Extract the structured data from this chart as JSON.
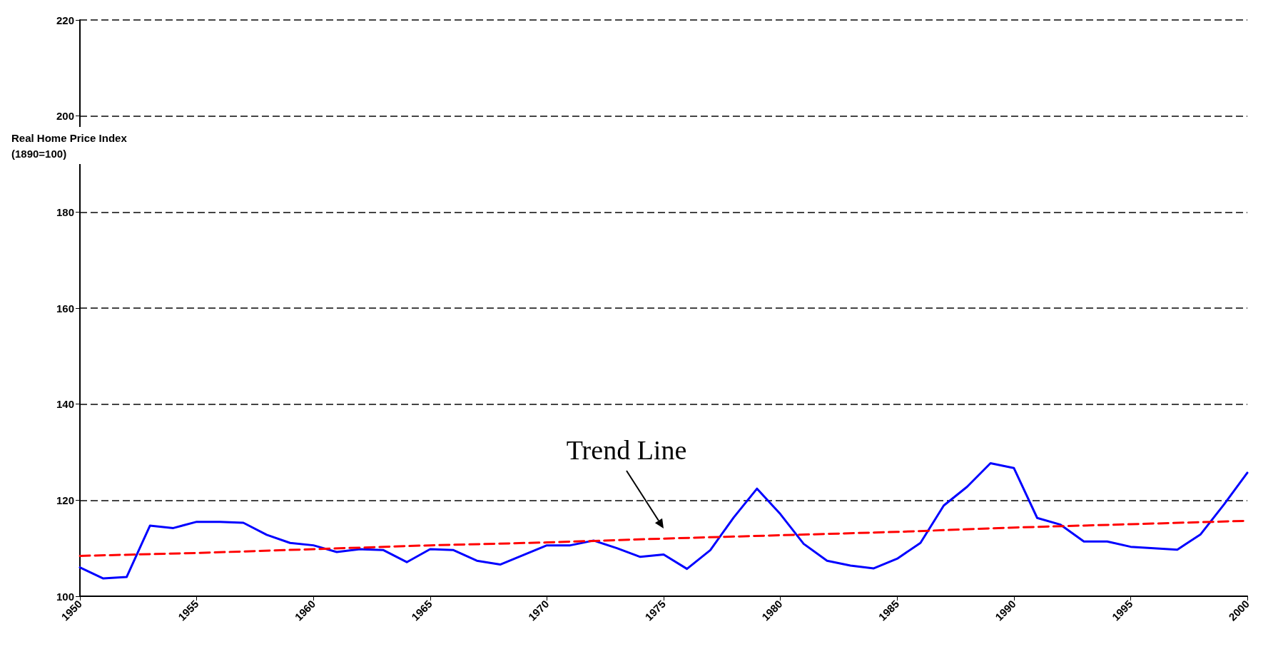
{
  "chart_data": {
    "type": "line",
    "ylabel": "Real Home Price Index\n(1890=100)",
    "x": [
      1950,
      1951,
      1952,
      1953,
      1954,
      1955,
      1956,
      1957,
      1958,
      1959,
      1960,
      1961,
      1962,
      1963,
      1964,
      1965,
      1966,
      1967,
      1968,
      1969,
      1970,
      1971,
      1972,
      1973,
      1974,
      1975,
      1976,
      1977,
      1978,
      1979,
      1980,
      1981,
      1982,
      1983,
      1984,
      1985,
      1986,
      1987,
      1988,
      1989,
      1990,
      1991,
      1992,
      1993,
      1994,
      1995,
      1996,
      1997,
      1998,
      1999,
      2000
    ],
    "series": [
      {
        "color": "#0000ff",
        "line_style": "solid",
        "values": [
          106.0,
          103.7,
          104.0,
          114.7,
          114.2,
          115.5,
          115.5,
          115.3,
          112.8,
          111.1,
          110.6,
          109.2,
          109.8,
          109.6,
          107.1,
          109.8,
          109.6,
          107.4,
          106.6,
          108.6,
          110.6,
          110.6,
          111.6,
          110.0,
          108.2,
          108.7,
          105.7,
          109.6,
          116.4,
          122.4,
          117.1,
          110.9,
          107.4,
          106.4,
          105.8,
          107.8,
          111.1,
          118.9,
          122.8,
          127.7,
          126.7,
          116.3,
          114.9,
          111.4,
          111.4,
          110.3,
          110.0,
          109.7,
          112.9,
          119.1,
          125.7
        ]
      },
      {
        "color": "#ff0000",
        "line_style": "dashed",
        "x": [
          1950,
          1955,
          1960,
          1965,
          1970,
          1975,
          1980,
          1985,
          1990,
          1995,
          2000
        ],
        "values": [
          108.4,
          109.0,
          109.8,
          110.6,
          111.2,
          112.0,
          112.7,
          113.4,
          114.3,
          115.0,
          115.7
        ]
      }
    ],
    "annotations": [
      {
        "text": "Trend Line",
        "x": 1975,
        "y": 112
      }
    ],
    "xlim": [
      1950,
      2000
    ],
    "xticks": [
      1950,
      1955,
      1960,
      1965,
      1970,
      1975,
      1980,
      1985,
      1990,
      1995,
      2000
    ],
    "ylim": [
      100,
      220
    ],
    "yticks": [
      100,
      120,
      140,
      160,
      180,
      200,
      220
    ],
    "grid": "y",
    "marker": "none"
  }
}
